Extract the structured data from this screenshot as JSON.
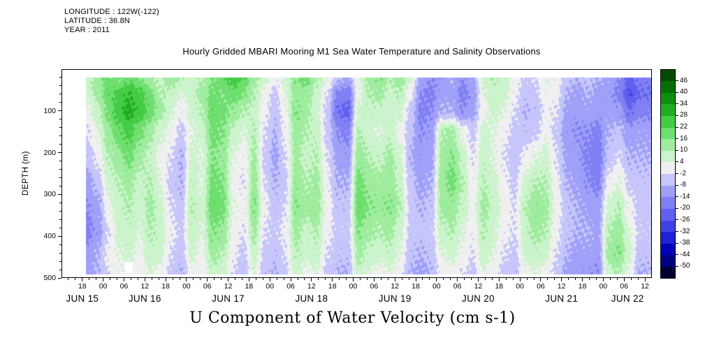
{
  "header": {
    "info_lines": [
      "LONGITUDE : 122W(-122)",
      "LATITUDE : 36.8N",
      "YEAR : 2011"
    ]
  },
  "chart_data": {
    "type": "heatmap",
    "title": "Hourly Gridded MBARI Mooring M1 Sea Water Temperature and Salinity Observations",
    "variable": "U Component of Water Velocity (cm s-1)",
    "ylabel": "DEPTH (m)",
    "y_axis": {
      "ticks": [
        100,
        200,
        300,
        400,
        500
      ],
      "range": [
        0,
        500
      ]
    },
    "x_axis": {
      "year": "2011",
      "date_labels": [
        "JUN 15",
        "JUN 16",
        "JUN 17",
        "JUN 18",
        "JUN 19",
        "JUN 20",
        "JUN 21",
        "JUN 22"
      ],
      "hour_labels": [
        "18",
        "00",
        "06",
        "12",
        "18",
        "00",
        "06",
        "12",
        "18",
        "00",
        "06",
        "12",
        "18",
        "00",
        "06",
        "12",
        "18",
        "00",
        "06",
        "12",
        "18",
        "00",
        "06",
        "12",
        "18",
        "00",
        "06",
        "12"
      ]
    },
    "colorbar": {
      "levels": [
        -50,
        -44,
        -38,
        -32,
        -26,
        -20,
        -14,
        -8,
        -2,
        4,
        10,
        16,
        22,
        28,
        34,
        40,
        46
      ],
      "tick_labels": [
        "46",
        "40",
        "34",
        "28",
        "22",
        "16",
        "10",
        "4",
        "-2",
        "-8",
        "-14",
        "-20",
        "-26",
        "-32",
        "-38",
        "-44",
        "-50"
      ],
      "colors": [
        "#000033",
        "#000080",
        "#0000b8",
        "#2020d8",
        "#4040e8",
        "#6060f0",
        "#8080f4",
        "#a0a0f8",
        "#c6c6fb",
        "#f0f0f0",
        "#ccf4cc",
        "#9fec9f",
        "#6ede6e",
        "#44cc44",
        "#21ad21",
        "#0e8e0e",
        "#056e05",
        "#034a03"
      ]
    },
    "grid": {
      "t_start": 1.5,
      "t_step": 3,
      "t_visible": [
        7,
        170
      ],
      "depth_visible": [
        20,
        492
      ],
      "depths": [
        20,
        60,
        100,
        150,
        210,
        270,
        330,
        390,
        440,
        490
      ],
      "values": [
        [
          8,
          8,
          8,
          14,
          18,
          16,
          20,
          16,
          12,
          8,
          14,
          10,
          6,
          10,
          16,
          20,
          26,
          22,
          12,
          6,
          0,
          6,
          16,
          18,
          10,
          4,
          -6,
          -10,
          4,
          12,
          16,
          10,
          14,
          6,
          -10,
          -14,
          -12,
          -8,
          -14,
          -10,
          6,
          10,
          8,
          2,
          -4,
          -2,
          4,
          2,
          -6,
          -8,
          -6,
          -8,
          -10,
          -14,
          -22,
          -18
        ],
        [
          4,
          4,
          6,
          12,
          20,
          24,
          28,
          24,
          18,
          10,
          8,
          4,
          8,
          12,
          18,
          16,
          20,
          16,
          10,
          2,
          -4,
          4,
          14,
          14,
          8,
          -2,
          -16,
          -18,
          2,
          10,
          12,
          8,
          10,
          0,
          -14,
          -16,
          -10,
          -10,
          -16,
          -12,
          4,
          8,
          6,
          0,
          -6,
          -4,
          2,
          0,
          -8,
          -10,
          -8,
          -10,
          -12,
          -16,
          -26,
          -20
        ],
        [
          0,
          0,
          2,
          8,
          18,
          26,
          30,
          26,
          20,
          12,
          6,
          0,
          6,
          10,
          20,
          18,
          14,
          10,
          8,
          0,
          -6,
          2,
          16,
          12,
          6,
          -4,
          -20,
          -22,
          6,
          8,
          8,
          6,
          6,
          -4,
          -16,
          -14,
          -8,
          -8,
          -14,
          -10,
          2,
          6,
          4,
          -2,
          -8,
          -6,
          0,
          -2,
          -10,
          -12,
          -10,
          -12,
          -10,
          -12,
          -20,
          -16
        ],
        [
          -4,
          -4,
          -2,
          4,
          14,
          20,
          24,
          18,
          12,
          6,
          2,
          -4,
          4,
          6,
          18,
          16,
          8,
          4,
          10,
          -2,
          -8,
          0,
          14,
          10,
          8,
          -4,
          -14,
          -16,
          10,
          6,
          4,
          8,
          2,
          -6,
          -14,
          -12,
          10,
          12,
          2,
          -4,
          6,
          4,
          0,
          -4,
          -6,
          -4,
          2,
          -4,
          -12,
          -14,
          -14,
          -16,
          -8,
          -6,
          -12,
          -10
        ],
        [
          -8,
          -8,
          -6,
          0,
          10,
          14,
          18,
          12,
          8,
          2,
          -2,
          -8,
          6,
          4,
          16,
          14,
          4,
          0,
          12,
          -4,
          -10,
          -2,
          12,
          8,
          10,
          -2,
          -10,
          -12,
          14,
          10,
          8,
          12,
          6,
          -8,
          -12,
          -10,
          12,
          16,
          8,
          -2,
          8,
          4,
          -2,
          -6,
          0,
          4,
          6,
          -2,
          -10,
          -12,
          -16,
          -18,
          -6,
          -2,
          -8,
          -8
        ],
        [
          -8,
          -8,
          -10,
          -6,
          6,
          10,
          12,
          8,
          10,
          4,
          -4,
          -8,
          8,
          4,
          18,
          16,
          2,
          -2,
          14,
          -2,
          -8,
          -4,
          14,
          10,
          12,
          0,
          -8,
          -8,
          18,
          14,
          12,
          14,
          8,
          -6,
          -10,
          -8,
          14,
          18,
          10,
          0,
          10,
          6,
          0,
          -4,
          6,
          10,
          10,
          0,
          -8,
          -10,
          -14,
          -16,
          0,
          4,
          -4,
          -6
        ],
        [
          -10,
          -10,
          -14,
          -10,
          2,
          8,
          10,
          6,
          12,
          6,
          -2,
          -6,
          10,
          6,
          20,
          18,
          4,
          0,
          16,
          0,
          -6,
          -2,
          16,
          12,
          14,
          2,
          -6,
          -6,
          20,
          16,
          14,
          16,
          10,
          -4,
          -8,
          -6,
          12,
          14,
          8,
          2,
          12,
          8,
          2,
          -2,
          10,
          14,
          12,
          2,
          -6,
          -8,
          -10,
          -12,
          6,
          10,
          0,
          -4
        ],
        [
          -12,
          -12,
          -16,
          -12,
          -2,
          6,
          8,
          4,
          10,
          8,
          0,
          -4,
          8,
          4,
          16,
          14,
          2,
          -2,
          12,
          -2,
          -4,
          0,
          12,
          8,
          10,
          0,
          -4,
          -4,
          16,
          12,
          10,
          12,
          6,
          -4,
          -6,
          -4,
          8,
          10,
          4,
          0,
          10,
          6,
          0,
          -2,
          8,
          12,
          10,
          0,
          -6,
          -8,
          -8,
          -10,
          10,
          14,
          4,
          -4
        ],
        [
          -10,
          -10,
          -12,
          -8,
          0,
          4,
          6,
          2,
          8,
          6,
          -2,
          -6,
          6,
          2,
          12,
          10,
          0,
          -4,
          8,
          -4,
          -6,
          -2,
          10,
          6,
          8,
          -2,
          -6,
          -6,
          12,
          8,
          6,
          8,
          4,
          -6,
          -8,
          -6,
          4,
          6,
          2,
          -2,
          8,
          4,
          -2,
          -4,
          6,
          8,
          6,
          -2,
          -8,
          -10,
          -10,
          -12,
          12,
          16,
          6,
          -6
        ],
        [
          -8,
          -8,
          -10,
          -8,
          -2,
          2,
          2,
          0,
          4,
          2,
          -4,
          -8,
          2,
          0,
          8,
          6,
          -2,
          -6,
          4,
          -6,
          -8,
          -4,
          6,
          2,
          4,
          -4,
          -8,
          -8,
          8,
          4,
          2,
          4,
          0,
          -8,
          -10,
          -8,
          0,
          2,
          -2,
          -4,
          4,
          0,
          -4,
          -6,
          2,
          4,
          2,
          -4,
          -10,
          -12,
          -12,
          -14,
          8,
          10,
          2,
          -8
        ]
      ]
    },
    "missing_regions": [
      {
        "t": [
          18.3,
          20.6
        ],
        "depth": [
          462,
          488
        ]
      }
    ]
  }
}
